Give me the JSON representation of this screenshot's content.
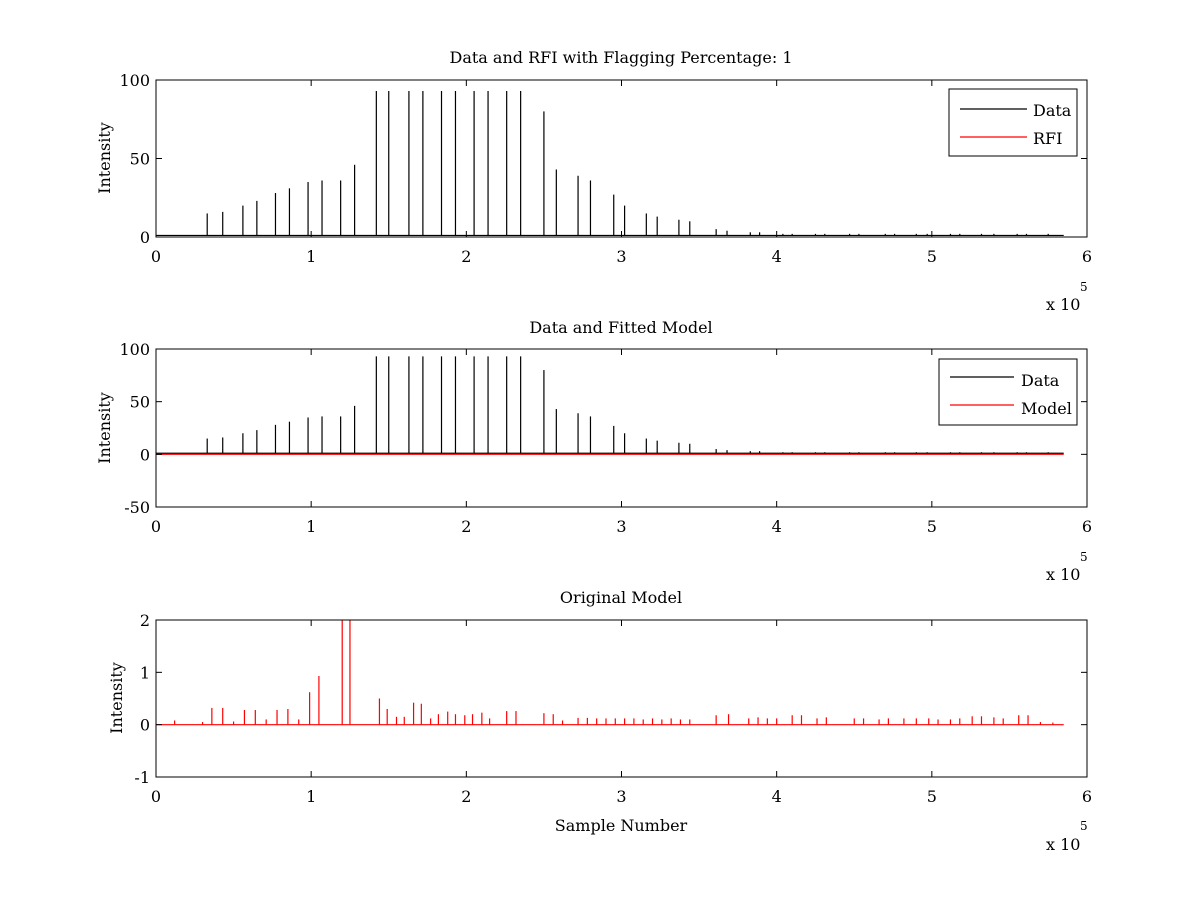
{
  "figure": {
    "background": "#ffffff",
    "colors": {
      "data": "#000000",
      "rfi": "#ff0000",
      "model": "#ff0000",
      "axes": "#000000"
    }
  },
  "chart_data": [
    {
      "type": "line",
      "title": "Data and RFI with Flagging Percentage: 1",
      "xlabel": "",
      "ylabel": "Intensity",
      "xlim": [
        0,
        600000
      ],
      "ylim": [
        0,
        100
      ],
      "xticks": [
        0,
        1,
        2,
        3,
        4,
        5,
        6
      ],
      "yticks": [
        0,
        50,
        100
      ],
      "x_exponent_label": "x 10",
      "x_exponent_power": "5",
      "grid": false,
      "legend_position": "top-right",
      "series": [
        {
          "name": "Data",
          "color": "#000000",
          "style": "spikes",
          "baseline": 1,
          "x": [
            33000,
            43000,
            56000,
            65000,
            77000,
            86000,
            98000,
            107000,
            119000,
            128000,
            142000,
            150000,
            163000,
            172000,
            184000,
            193000,
            205000,
            214000,
            226000,
            235000,
            250000,
            258000,
            272000,
            280000,
            295000,
            302000,
            316000,
            323000,
            337000,
            344000,
            361000,
            368000,
            383000,
            389000,
            404000,
            410000,
            425000,
            431000,
            447000,
            453000,
            470000,
            476000,
            490000,
            497000,
            512000,
            518000,
            532000,
            540000,
            555000,
            561000,
            575000
          ],
          "values": [
            15,
            16,
            20,
            23,
            28,
            31,
            35,
            36,
            36,
            46,
            93,
            93,
            93,
            93,
            93,
            93,
            93,
            93,
            93,
            93,
            80,
            43,
            39,
            36,
            27,
            20,
            15,
            13,
            11,
            10,
            5,
            4,
            3,
            3,
            2,
            2,
            2,
            2,
            2,
            2,
            2,
            2,
            2,
            2,
            2,
            2,
            2,
            2,
            2,
            2,
            2
          ]
        },
        {
          "name": "RFI",
          "color": "#ff0000",
          "style": "spikes",
          "baseline": 0,
          "x": [],
          "values": []
        }
      ]
    },
    {
      "type": "line",
      "title": "Data and Fitted Model",
      "xlabel": "",
      "ylabel": "Intensity",
      "xlim": [
        0,
        600000
      ],
      "ylim": [
        -50,
        100
      ],
      "xticks": [
        0,
        1,
        2,
        3,
        4,
        5,
        6
      ],
      "yticks": [
        -50,
        0,
        50,
        100
      ],
      "x_exponent_label": "x 10",
      "x_exponent_power": "5",
      "grid": false,
      "legend_position": "top-right",
      "series": [
        {
          "name": "Data",
          "color": "#000000",
          "style": "spikes",
          "baseline": 1,
          "x": [
            33000,
            43000,
            56000,
            65000,
            77000,
            86000,
            98000,
            107000,
            119000,
            128000,
            142000,
            150000,
            163000,
            172000,
            184000,
            193000,
            205000,
            214000,
            226000,
            235000,
            250000,
            258000,
            272000,
            280000,
            295000,
            302000,
            316000,
            323000,
            337000,
            344000,
            361000,
            368000,
            383000,
            389000,
            404000,
            410000,
            425000,
            431000,
            447000,
            453000,
            470000,
            476000,
            490000,
            497000,
            512000,
            518000,
            532000,
            540000,
            555000,
            561000,
            575000
          ],
          "values": [
            15,
            16,
            20,
            23,
            28,
            31,
            35,
            36,
            36,
            46,
            93,
            93,
            93,
            93,
            93,
            93,
            93,
            93,
            93,
            93,
            80,
            43,
            39,
            36,
            27,
            20,
            15,
            13,
            11,
            10,
            5,
            4,
            3,
            3,
            2,
            2,
            2,
            2,
            2,
            2,
            2,
            2,
            2,
            2,
            2,
            2,
            2,
            2,
            2,
            2,
            2
          ]
        },
        {
          "name": "Model",
          "color": "#ff0000",
          "style": "line",
          "x": [
            0,
            585000
          ],
          "values": [
            0,
            0
          ]
        }
      ]
    },
    {
      "type": "line",
      "title": "Original Model",
      "xlabel": "Sample Number",
      "ylabel": "Intensity",
      "xlim": [
        0,
        600000
      ],
      "ylim": [
        -1,
        2
      ],
      "xticks": [
        0,
        1,
        2,
        3,
        4,
        5,
        6
      ],
      "yticks": [
        -1,
        0,
        1,
        2
      ],
      "x_exponent_label": "x 10",
      "x_exponent_power": "5",
      "grid": false,
      "legend_position": "none",
      "series": [
        {
          "name": "",
          "color": "#ff0000",
          "style": "spikes",
          "baseline": 0,
          "x_range": [
            0,
            585000
          ],
          "x": [
            12000,
            30000,
            36000,
            43000,
            50000,
            57000,
            64000,
            71000,
            78000,
            85000,
            92000,
            99000,
            105000,
            120000,
            125000,
            144000,
            149000,
            155000,
            160000,
            166000,
            171000,
            177000,
            182000,
            188000,
            193000,
            199000,
            204000,
            210000,
            215000,
            226000,
            232000,
            250000,
            256000,
            262000,
            272000,
            278000,
            284000,
            290000,
            296000,
            302000,
            308000,
            314000,
            320000,
            326000,
            332000,
            338000,
            344000,
            361000,
            369000,
            382000,
            388000,
            394000,
            400000,
            410000,
            416000,
            426000,
            432000,
            450000,
            456000,
            466000,
            472000,
            482000,
            490000,
            498000,
            504000,
            512000,
            518000,
            526000,
            532000,
            540000,
            546000,
            556000,
            562000,
            570000,
            578000
          ],
          "values": [
            0.08,
            0.05,
            0.32,
            0.32,
            0.06,
            0.28,
            0.28,
            0.1,
            0.28,
            0.3,
            0.1,
            0.62,
            0.93,
            2.0,
            2.0,
            0.5,
            0.3,
            0.15,
            0.15,
            0.42,
            0.4,
            0.12,
            0.2,
            0.25,
            0.2,
            0.18,
            0.2,
            0.23,
            0.12,
            0.26,
            0.26,
            0.22,
            0.2,
            0.08,
            0.13,
            0.13,
            0.12,
            0.12,
            0.12,
            0.12,
            0.12,
            0.1,
            0.12,
            0.1,
            0.12,
            0.1,
            0.1,
            0.18,
            0.2,
            0.12,
            0.14,
            0.12,
            0.12,
            0.18,
            0.18,
            0.12,
            0.14,
            0.12,
            0.12,
            0.1,
            0.12,
            0.12,
            0.12,
            0.12,
            0.1,
            0.1,
            0.12,
            0.16,
            0.16,
            0.14,
            0.12,
            0.18,
            0.18,
            0.05,
            0.04
          ]
        }
      ]
    }
  ]
}
